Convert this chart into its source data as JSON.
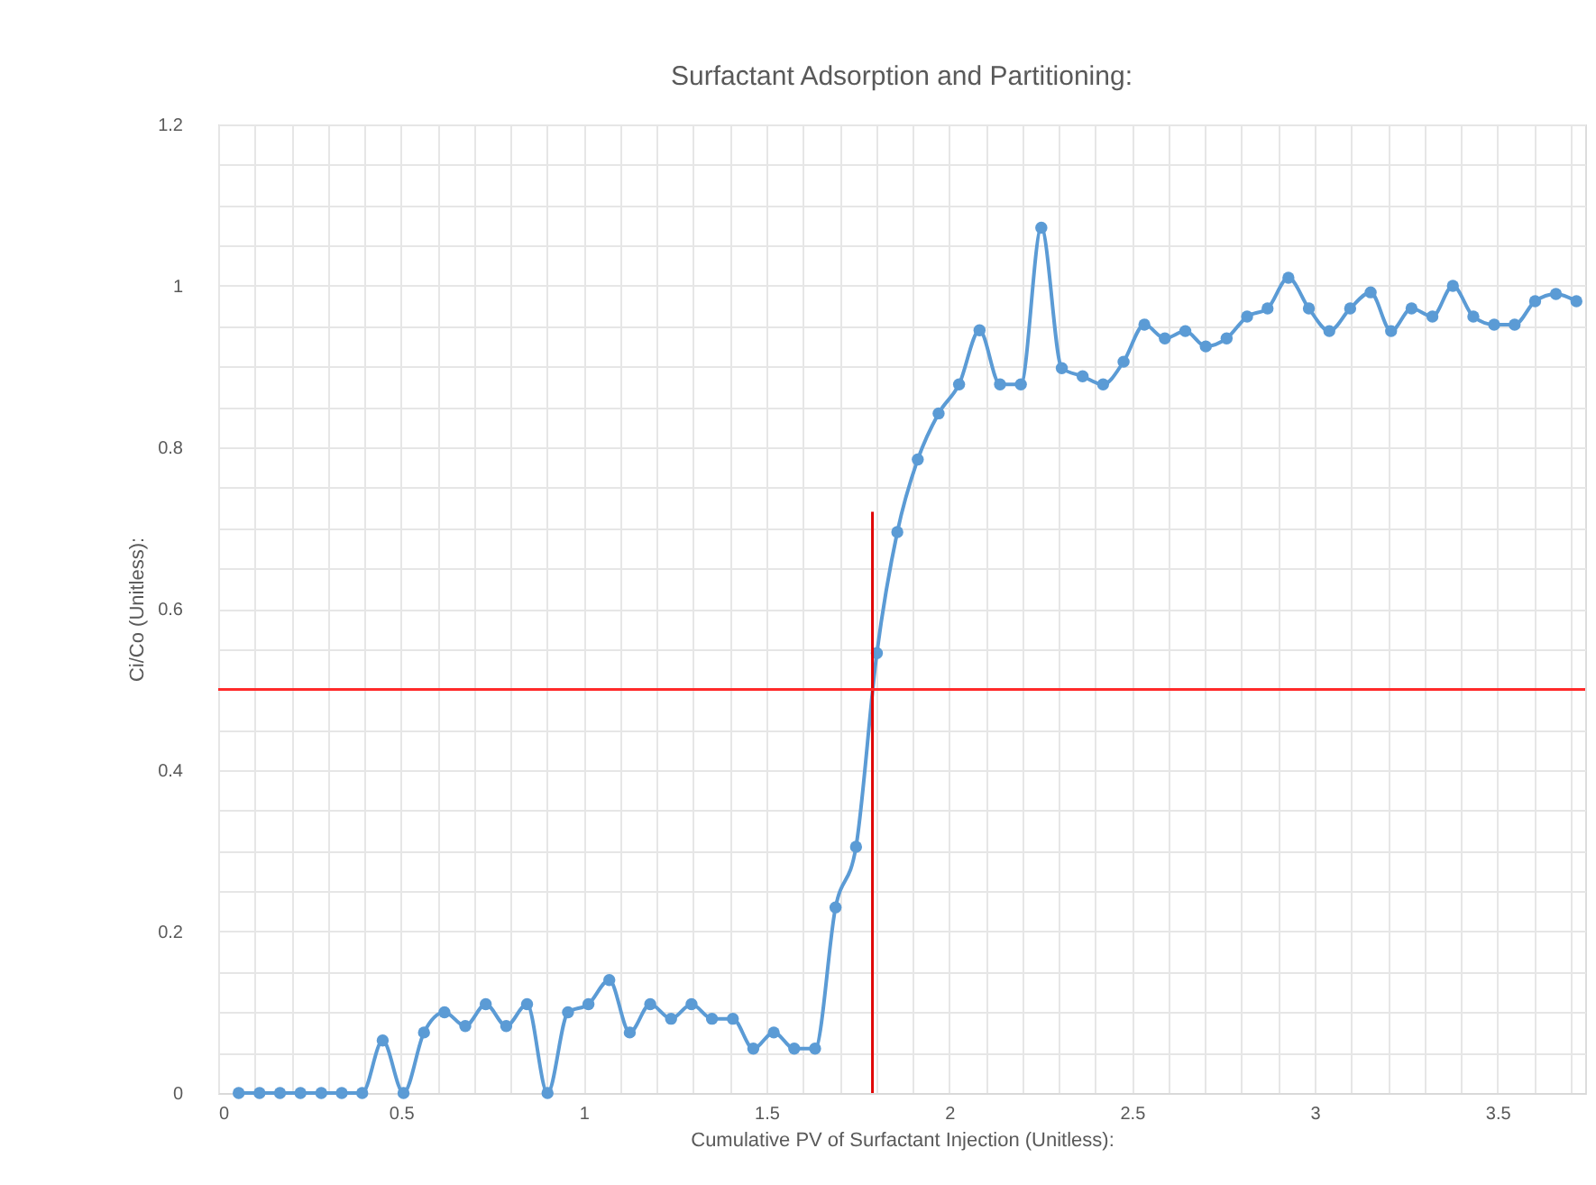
{
  "chart_data": {
    "type": "line",
    "title": "Surfactant Adsorption and Partitioning:",
    "xlabel": "Cumulative PV of Surfactant Injection (Unitless):",
    "ylabel": "Ci/Co (Unitless):",
    "xlim": [
      0,
      3.74
    ],
    "ylim": [
      0,
      1.2
    ],
    "xticks": [
      0,
      {
        "value": 0.1,
        "label": null
      },
      {
        "value": 0.2,
        "label": null
      },
      {
        "value": 0.3,
        "label": null
      },
      {
        "value": 0.4,
        "label": null
      },
      0.5,
      {
        "value": 0.6,
        "label": null
      },
      {
        "value": 0.7,
        "label": null
      },
      {
        "value": 0.8,
        "label": null
      },
      {
        "value": 0.9,
        "label": null
      },
      1,
      {
        "value": 1.1,
        "label": null
      },
      {
        "value": 1.2,
        "label": null
      },
      {
        "value": 1.3,
        "label": null
      },
      {
        "value": 1.4,
        "label": null
      },
      1.5,
      {
        "value": 1.6,
        "label": null
      },
      {
        "value": 1.7,
        "label": null
      },
      {
        "value": 1.8,
        "label": null
      },
      {
        "value": 1.9,
        "label": null
      },
      2,
      {
        "value": 2.1,
        "label": null
      },
      {
        "value": 2.2,
        "label": null
      },
      {
        "value": 2.3,
        "label": null
      },
      {
        "value": 2.4,
        "label": null
      },
      2.5,
      {
        "value": 2.6,
        "label": null
      },
      {
        "value": 2.7,
        "label": null
      },
      {
        "value": 2.8,
        "label": null
      },
      {
        "value": 2.9,
        "label": null
      },
      3,
      {
        "value": 3.1,
        "label": null
      },
      {
        "value": 3.2,
        "label": null
      },
      {
        "value": 3.3,
        "label": null
      },
      {
        "value": 3.4,
        "label": null
      },
      3.5,
      {
        "value": 3.6,
        "label": null
      },
      {
        "value": 3.7,
        "label": null
      }
    ],
    "yticks": [
      0,
      {
        "value": 0.05,
        "label": null
      },
      {
        "value": 0.1,
        "label": null
      },
      {
        "value": 0.15,
        "label": null
      },
      0.2,
      {
        "value": 0.25,
        "label": null
      },
      {
        "value": 0.3,
        "label": null
      },
      {
        "value": 0.35,
        "label": null
      },
      0.4,
      {
        "value": 0.45,
        "label": null
      },
      {
        "value": 0.5,
        "label": null
      },
      {
        "value": 0.55,
        "label": null
      },
      0.6,
      {
        "value": 0.65,
        "label": null
      },
      {
        "value": 0.7,
        "label": null
      },
      {
        "value": 0.75,
        "label": null
      },
      0.8,
      {
        "value": 0.85,
        "label": null
      },
      {
        "value": 0.9,
        "label": null
      },
      {
        "value": 0.95,
        "label": null
      },
      1,
      {
        "value": 1.05,
        "label": null
      },
      {
        "value": 1.1,
        "label": null
      },
      {
        "value": 1.15,
        "label": null
      },
      1.2
    ],
    "grid": true,
    "series": [
      {
        "color": "#5b9bd5",
        "marker": "circle",
        "x": [
          0.056,
          0.113,
          0.169,
          0.225,
          0.282,
          0.338,
          0.394,
          0.45,
          0.507,
          0.563,
          0.619,
          0.676,
          0.732,
          0.788,
          0.845,
          0.901,
          0.957,
          1.013,
          1.07,
          1.126,
          1.182,
          1.239,
          1.295,
          1.351,
          1.408,
          1.464,
          1.52,
          1.576,
          1.633,
          1.689,
          1.745,
          1.802,
          1.858,
          1.914,
          1.971,
          2.027,
          2.083,
          2.139,
          2.196,
          2.252,
          2.308,
          2.365,
          2.421,
          2.477,
          2.534,
          2.59,
          2.646,
          2.702,
          2.759,
          2.815,
          2.871,
          2.928,
          2.984,
          3.04,
          3.097,
          3.153,
          3.209,
          3.265,
          3.322,
          3.378,
          3.434,
          3.491,
          3.547,
          3.603,
          3.66,
          3.716
        ],
        "values": [
          0,
          0,
          0,
          0,
          0,
          0,
          0,
          0.065,
          0,
          0.075,
          0.1,
          0.083,
          0.11,
          0.083,
          0.11,
          0,
          0.1,
          0.11,
          0.14,
          0.075,
          0.11,
          0.092,
          0.11,
          0.092,
          0.092,
          0.055,
          0.075,
          0.055,
          0.055,
          0.23,
          0.305,
          0.545,
          0.695,
          0.785,
          0.842,
          0.878,
          0.945,
          0.878,
          0.878,
          1.072,
          0.898,
          0.888,
          0.878,
          0.906,
          0.952,
          0.935,
          0.944,
          0.925,
          0.935,
          0.962,
          0.972,
          1.01,
          0.972,
          0.944,
          0.972,
          0.992,
          0.944,
          0.972,
          0.962,
          1.0,
          0.962,
          0.952,
          0.952,
          0.981,
          0.99,
          0.981
        ]
      },
      {
        "color": "#e00000",
        "marker": "none",
        "x": [
          1.79,
          1.79
        ],
        "values": [
          0,
          0.72
        ]
      }
    ],
    "ref_lines": [
      {
        "axis": "y",
        "value": 0.5,
        "color": "#ff2a2a"
      }
    ]
  }
}
